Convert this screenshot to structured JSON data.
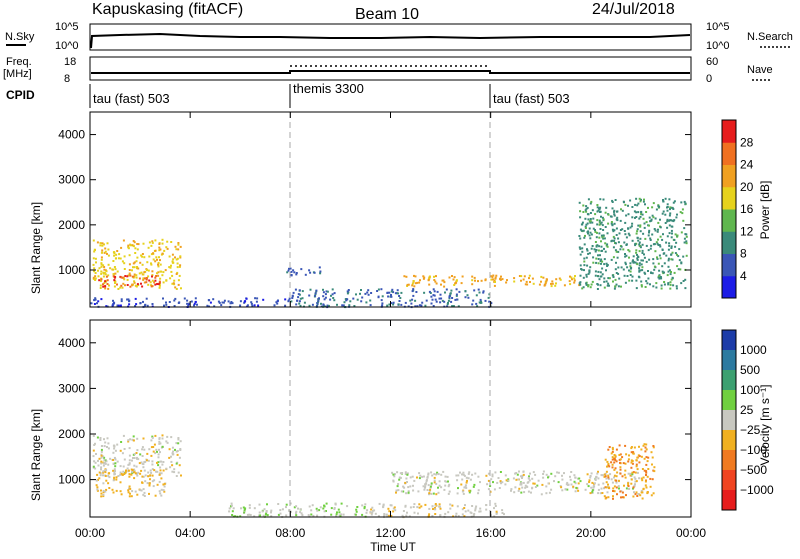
{
  "header": {
    "station": "Kapuskasing (fitACF)",
    "beam": "Beam 10",
    "date": "24/Jul/2018"
  },
  "top_panels": {
    "nsky_label": "N.Sky",
    "nsky_ticks": [
      "10^5",
      "10^0"
    ],
    "nsearch_label": "N.Search",
    "nsearch_ticks": [
      "10^5",
      "10^0"
    ],
    "freq_label": "Freq.",
    "freq_unit": "[MHz]",
    "freq_ticks": [
      "18",
      "8"
    ],
    "nave_label": "Nave",
    "nave_ticks": [
      "60",
      "0"
    ],
    "cpid_label": "CPID",
    "cpid_segments": [
      {
        "label": "tau (fast) 503",
        "start": "00:00",
        "end": "08:00"
      },
      {
        "label": "themis 3300",
        "start": "08:00",
        "end": "16:00"
      },
      {
        "label": "tau (fast) 503",
        "start": "16:00",
        "end": "24:00"
      }
    ]
  },
  "axes": {
    "ylabel": "Slant Range [km]",
    "xlabel": "Time UT",
    "yticks": [
      "1000",
      "2000",
      "3000",
      "4000"
    ],
    "xticks": [
      "00:00",
      "04:00",
      "08:00",
      "12:00",
      "16:00",
      "20:00",
      "00:00"
    ]
  },
  "colorbars": {
    "power": {
      "label": "Power [dB]",
      "ticks": [
        "4",
        "8",
        "12",
        "16",
        "20",
        "24",
        "28"
      ],
      "colors": [
        "#1c1ce6",
        "#3a56b6",
        "#3a8a7a",
        "#5fb64e",
        "#e6d21c",
        "#f0a020",
        "#f07020",
        "#e61c1c"
      ]
    },
    "velocity": {
      "label": "Velocity [m s⁻¹]",
      "ticks": [
        "1000",
        "500",
        "100",
        "25",
        "−25",
        "−100",
        "−500",
        "−1000"
      ],
      "colors": [
        "#1c3ca8",
        "#2c7aa0",
        "#3ca070",
        "#70d040",
        "#c8c8c0",
        "#f0b020",
        "#f07a20",
        "#f04420",
        "#e61c1c"
      ]
    }
  },
  "chart_data": [
    {
      "type": "heatmap",
      "title": "Beam 10",
      "xlabel": "Time UT",
      "ylabel": "Slant Range [km]",
      "xlim": [
        0,
        24
      ],
      "ylim": [
        180,
        4500
      ],
      "colorbar": "Power [dB]",
      "clim": [
        0,
        30
      ],
      "regions": [
        {
          "t": [
            0.1,
            3.6
          ],
          "r": [
            600,
            1700
          ],
          "value": 18
        },
        {
          "t": [
            0.3,
            2.8
          ],
          "r": [
            650,
            900
          ],
          "value": 26
        },
        {
          "t": [
            0.0,
            8.0
          ],
          "r": [
            200,
            400
          ],
          "value": 5
        },
        {
          "t": [
            8.0,
            16.0
          ],
          "r": [
            200,
            600
          ],
          "value": 7
        },
        {
          "t": [
            12.5,
            19.5
          ],
          "r": [
            650,
            900
          ],
          "value": 20
        },
        {
          "t": [
            7.8,
            9.2
          ],
          "r": [
            900,
            1100
          ],
          "value": 6
        },
        {
          "t": [
            19.5,
            23.8
          ],
          "r": [
            600,
            2600
          ],
          "value": 10
        }
      ]
    },
    {
      "type": "heatmap",
      "title": "",
      "xlabel": "Time UT",
      "ylabel": "Slant Range [km]",
      "xlim": [
        0,
        24
      ],
      "ylim": [
        180,
        4500
      ],
      "colorbar": "Velocity [m s⁻¹]",
      "clim": [
        -1000,
        1000
      ],
      "regions": [
        {
          "t": [
            0.1,
            3.6
          ],
          "r": [
            1100,
            2000
          ],
          "value": 0
        },
        {
          "t": [
            0.2,
            3.0
          ],
          "r": [
            650,
            1250
          ],
          "value": -150
        },
        {
          "t": [
            5.5,
            11.0
          ],
          "r": [
            200,
            500
          ],
          "value": 100
        },
        {
          "t": [
            11.0,
            16.5
          ],
          "r": [
            200,
            500
          ],
          "value": -50
        },
        {
          "t": [
            12.0,
            22.0
          ],
          "r": [
            700,
            1200
          ],
          "value": 0
        },
        {
          "t": [
            20.5,
            22.5
          ],
          "r": [
            600,
            1800
          ],
          "value": -300
        }
      ]
    }
  ]
}
